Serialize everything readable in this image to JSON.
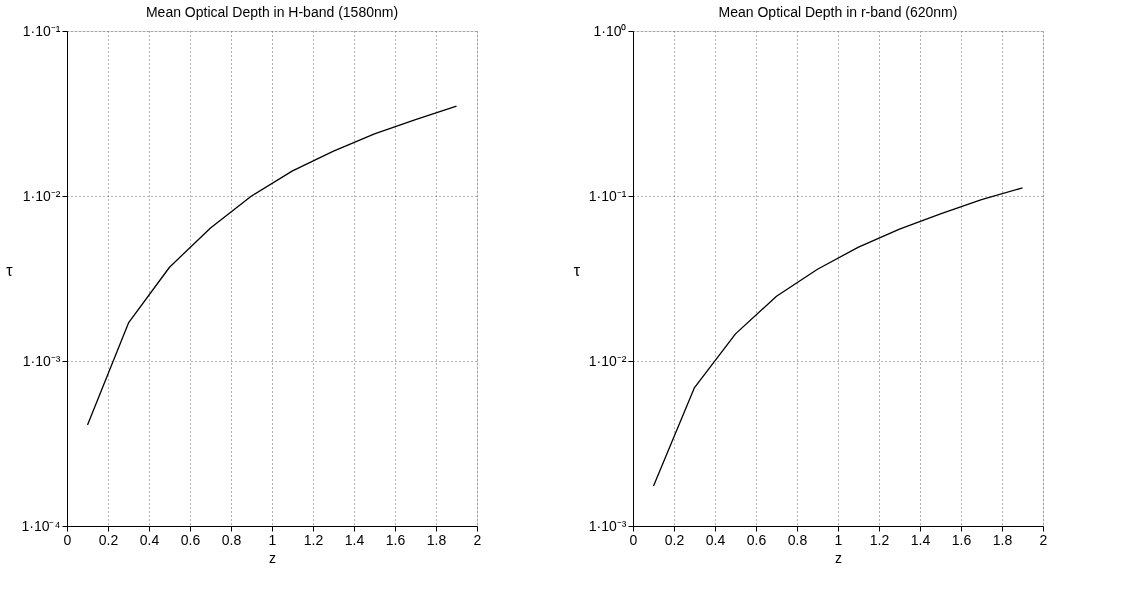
{
  "chart_data": [
    {
      "type": "line",
      "title": "Mean Optical Depth in H-band (1580nm)",
      "xlabel": "z",
      "ylabel": "τ",
      "log": "y",
      "grid": true,
      "line_style": "solid",
      "x": [
        0.1,
        0.3,
        0.5,
        0.7,
        0.9,
        1.1,
        1.3,
        1.5,
        1.7,
        1.9
      ],
      "series": [
        {
          "color": "#000000",
          "values": [
            0.00041,
            0.0017,
            0.0037,
            0.0064,
            0.01,
            0.0142,
            0.0187,
            0.0238,
            0.029,
            0.035
          ]
        }
      ],
      "xlim": [
        0,
        2
      ],
      "xticks": [
        0,
        0.2,
        0.4,
        0.6,
        0.8,
        1,
        1.2,
        1.4,
        1.6,
        1.8,
        2
      ],
      "ylim": [
        0.0001,
        0.1
      ],
      "yticks": [
        {
          "value": 0.0001,
          "label": "1·10⁻⁴"
        },
        {
          "value": 0.001,
          "label": "1·10⁻³"
        },
        {
          "value": 0.01,
          "label": "1·10⁻²"
        },
        {
          "value": 0.1,
          "label": "1·10⁻¹"
        }
      ]
    },
    {
      "type": "line",
      "title": "Mean Optical Depth in r-band (620nm)",
      "xlabel": "z",
      "ylabel": "τ",
      "log": "y",
      "grid": true,
      "line_style": "solid",
      "x": [
        0.1,
        0.3,
        0.5,
        0.7,
        0.9,
        1.1,
        1.3,
        1.5,
        1.7,
        1.9
      ],
      "series": [
        {
          "color": "#000000",
          "values": [
            0.00175,
            0.0069,
            0.0146,
            0.0247,
            0.036,
            0.049,
            0.063,
            0.078,
            0.095,
            0.112
          ]
        }
      ],
      "xlim": [
        0,
        2
      ],
      "xticks": [
        0,
        0.2,
        0.4,
        0.6,
        0.8,
        1,
        1.2,
        1.4,
        1.6,
        1.8,
        2
      ],
      "ylim": [
        0.001,
        1
      ],
      "yticks": [
        {
          "value": 0.001,
          "label": "1·10⁻³"
        },
        {
          "value": 0.01,
          "label": "1·10⁻²"
        },
        {
          "value": 0.1,
          "label": "1·10⁻¹"
        },
        {
          "value": 1,
          "label": "1·10⁰"
        }
      ]
    }
  ]
}
